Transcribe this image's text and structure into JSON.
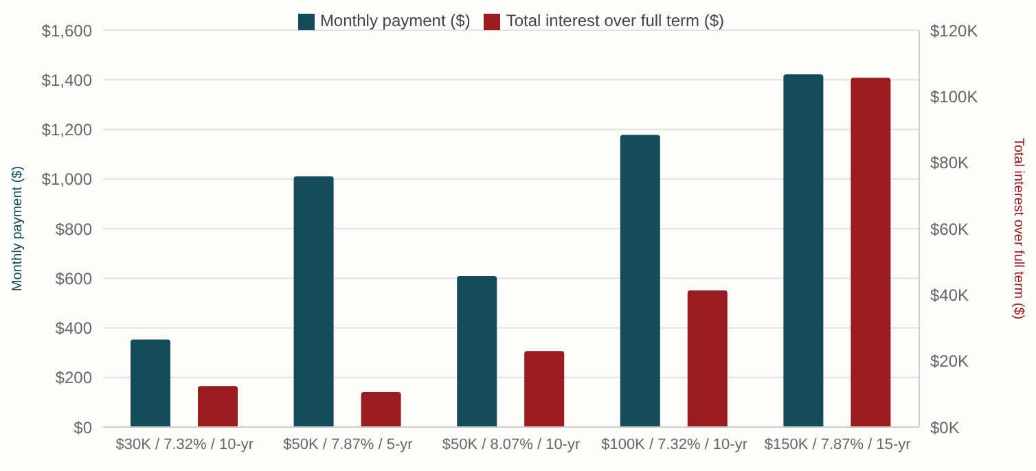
{
  "chart_data": {
    "type": "bar",
    "categories": [
      "$30K / 7.32% / 10-yr",
      "$50K / 7.87% / 5-yr",
      "$50K / 8.07% / 10-yr",
      "$100K / 7.32% / 10-yr",
      "$150K / 7.87% / 15-yr"
    ],
    "series": [
      {
        "name": "Monthly payment ($)",
        "color": "#134b5a",
        "values": [
          353,
          1011,
          609,
          1178,
          1422
        ]
      },
      {
        "name": "Total interest over full term ($)",
        "color": "#9b1b1e",
        "axis": "y2",
        "values": [
          12400,
          10600,
          23000,
          41300,
          105600
        ]
      }
    ],
    "ylabel": "Monthly payment ($)",
    "y2label": "Total interest over full term ($)",
    "ylim": [
      0,
      1600
    ],
    "yticks": [
      {
        "value": 0,
        "label": "$0"
      },
      {
        "value": 200,
        "label": "$200"
      },
      {
        "value": 400,
        "label": "$400"
      },
      {
        "value": 600,
        "label": "$600"
      },
      {
        "value": 800,
        "label": "$800"
      },
      {
        "value": 1000,
        "label": "$1,000"
      },
      {
        "value": 1200,
        "label": "$1,200"
      },
      {
        "value": 1400,
        "label": "$1,400"
      },
      {
        "value": 1600,
        "label": "$1,600"
      }
    ],
    "y2lim": [
      0,
      120000
    ],
    "y2ticks": [
      {
        "value": 0,
        "label": "$0K"
      },
      {
        "value": 20000,
        "label": "$20K"
      },
      {
        "value": 40000,
        "label": "$40K"
      },
      {
        "value": 60000,
        "label": "$60K"
      },
      {
        "value": 80000,
        "label": "$80K"
      },
      {
        "value": 100000,
        "label": "$100K"
      },
      {
        "value": 120000,
        "label": "$120K"
      }
    ],
    "grid": "y",
    "legend": "top"
  }
}
